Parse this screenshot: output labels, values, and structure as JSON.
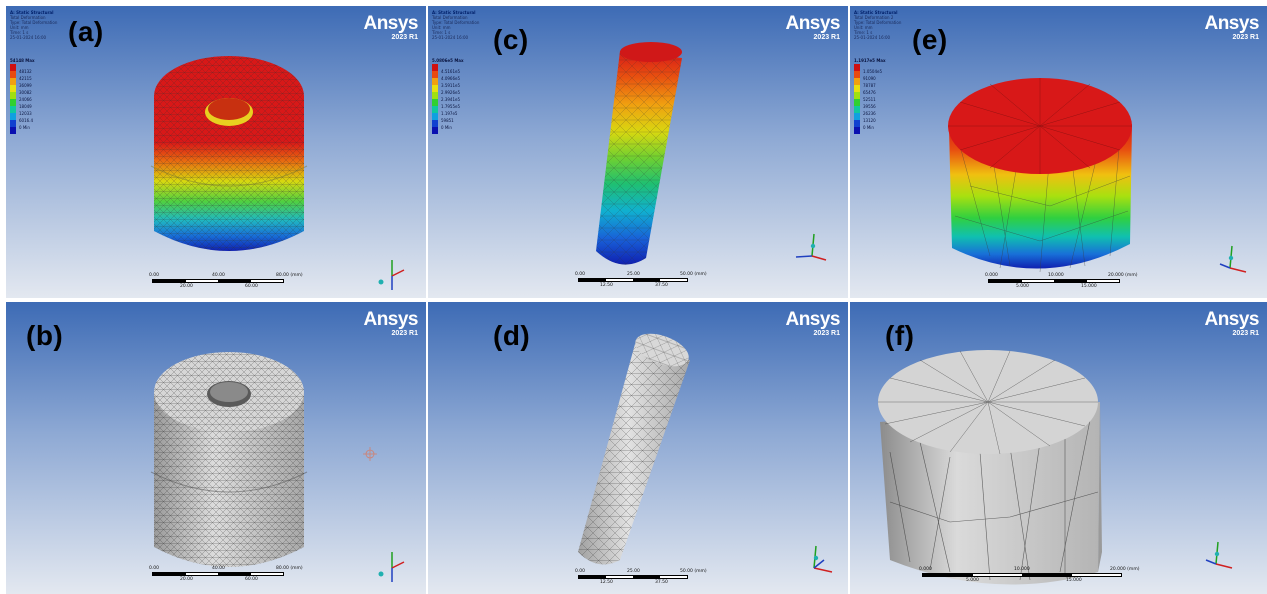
{
  "brand": {
    "name": "Ansys",
    "version": "2023 R1"
  },
  "panels": {
    "a": {
      "label": "(a)",
      "info": [
        "A: Static Structural",
        "Total Deformation",
        "Type: Total Deformation",
        "Unit: mm",
        "Time: 1 s",
        "25-01-2024 16:00"
      ],
      "legend": {
        "max": "54148 Max",
        "values": [
          "48132",
          "42115",
          "36099",
          "30082",
          "24066",
          "18049",
          "12033",
          "6016.4",
          "0 Min"
        ]
      },
      "scale": {
        "top": [
          "0.00",
          "40.00",
          "80.00 (mm)"
        ],
        "bottom": [
          "20.00",
          "60.00"
        ]
      }
    },
    "b": {
      "label": "(b)",
      "scale": {
        "top": [
          "0.00",
          "40.00",
          "80.00 (mm)"
        ],
        "bottom": [
          "20.00",
          "60.00"
        ]
      }
    },
    "c": {
      "label": "(c)",
      "info": [
        "A: Static Structural",
        "Total Deformation",
        "Type: Total Deformation",
        "Unit: mm",
        "Time: 1 s",
        "25-01-2024 16:00"
      ],
      "legend": {
        "max": "5.0806e5 Max",
        "values": [
          "4.5161e5",
          "4.0966e5",
          "3.5911e5",
          "2.9926e5",
          "2.3941e5",
          "1.7955e5",
          "1.197e5",
          "59851",
          "0 Min"
        ]
      },
      "scale": {
        "top": [
          "0.00",
          "25.00",
          "50.00 (mm)"
        ],
        "bottom": [
          "12.50",
          "37.50"
        ]
      }
    },
    "d": {
      "label": "(d)",
      "scale": {
        "top": [
          "0.00",
          "25.00",
          "50.00 (mm)"
        ],
        "bottom": [
          "12.50",
          "37.50"
        ]
      }
    },
    "e": {
      "label": "(e)",
      "info": [
        "A: Static Structural",
        "Total Deformation 2",
        "Type: Total Deformation",
        "Unit: mm",
        "Time: 1 s",
        "25-01-2024 16:00"
      ],
      "legend": {
        "max": "1.1917e5 Max",
        "values": [
          "1.0504e5",
          "91090",
          "78787",
          "65476",
          "52511",
          "39556",
          "26236",
          "13120",
          "0 Min"
        ]
      },
      "scale": {
        "top": [
          "0.000",
          "10.000",
          "20.000 (mm)"
        ],
        "bottom": [
          "5.000",
          "15.000"
        ]
      }
    },
    "f": {
      "label": "(f)",
      "scale": {
        "top": [
          "0.000",
          "10.000",
          "20.000 (mm)"
        ],
        "bottom": [
          "5.000",
          "15.000"
        ]
      }
    }
  },
  "axis_labels": {
    "x": "X",
    "y": "Y",
    "z": "Z"
  },
  "colors": {
    "contour": [
      "#d01010",
      "#e84a10",
      "#f0a010",
      "#e8e010",
      "#a0e010",
      "#30d030",
      "#10c8a0",
      "#10a0e0",
      "#1040d0",
      "#0a10b0"
    ],
    "mesh_gray": "#c8c8c8"
  }
}
